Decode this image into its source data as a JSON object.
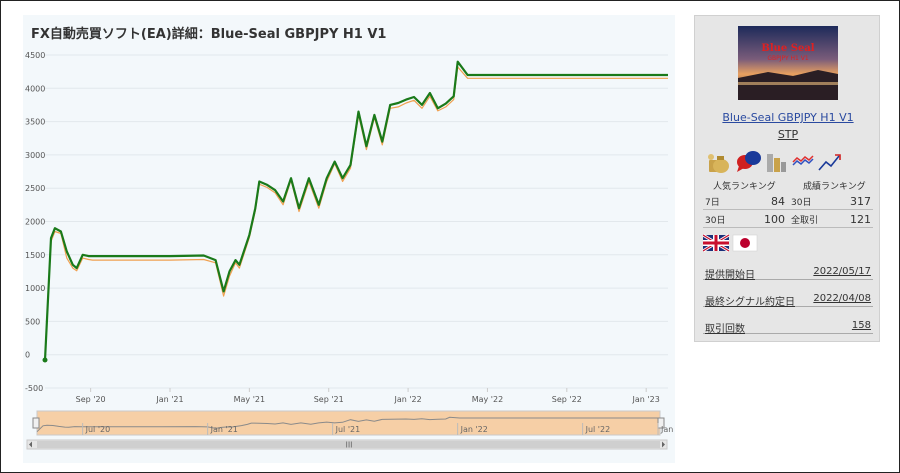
{
  "chart_data": {
    "type": "line",
    "title": "FX自動売買ソフト(EA)詳細：Blue-Seal GBPJPY H1 V1",
    "ylim": [
      -500,
      4500
    ],
    "y_ticks": [
      "4500",
      "4000",
      "3500",
      "3000",
      "2500",
      "2000",
      "1500",
      "1000",
      "500",
      "0",
      "-500"
    ],
    "x_ticks": [
      "Sep '20",
      "Jan '21",
      "May '21",
      "Sep '21",
      "Jan '22",
      "May '22",
      "Sep '22",
      "Jan '23"
    ],
    "x_ticks_t": [
      2.3,
      6.3,
      10.3,
      14.3,
      18.3,
      22.3,
      26.3,
      30.3
    ],
    "xlim": [
      0,
      31.4
    ],
    "grid": true,
    "legend": "none",
    "series": [
      {
        "color": "#f0a050",
        "x": [
          0,
          0.3,
          0.5,
          0.8,
          1.1,
          1.4,
          1.6,
          1.9,
          2.2,
          2.4,
          3.5,
          6.3,
          8.0,
          8.6,
          9.0,
          9.3,
          9.6,
          9.8,
          10.3,
          10.6,
          10.8,
          11.2,
          11.6,
          12.0,
          12.4,
          12.8,
          13.3,
          13.8,
          14.2,
          14.6,
          15.0,
          15.4,
          15.8,
          16.2,
          16.6,
          17.0,
          17.4,
          17.8,
          18.2,
          18.6,
          19.0,
          19.4,
          19.8,
          20.2,
          20.6,
          20.8,
          21.3,
          22.3,
          26.3,
          31.4
        ],
        "values": [
          -80,
          1700,
          1850,
          1820,
          1450,
          1300,
          1260,
          1450,
          1430,
          1420,
          1420,
          1420,
          1430,
          1380,
          880,
          1180,
          1380,
          1300,
          1760,
          2160,
          2560,
          2510,
          2430,
          2250,
          2620,
          2150,
          2600,
          2200,
          2600,
          2870,
          2600,
          2800,
          3600,
          3080,
          3560,
          3150,
          3700,
          3720,
          3780,
          3820,
          3700,
          3880,
          3660,
          3720,
          3830,
          4320,
          4150,
          4150,
          4150,
          4150
        ]
      },
      {
        "color": "#1a7a1a",
        "x": [
          0,
          0.3,
          0.5,
          0.8,
          1.1,
          1.4,
          1.6,
          1.9,
          2.2,
          2.4,
          3.5,
          6.3,
          8.0,
          8.6,
          9.0,
          9.3,
          9.6,
          9.8,
          10.3,
          10.6,
          10.8,
          11.2,
          11.6,
          12.0,
          12.4,
          12.8,
          13.3,
          13.8,
          14.2,
          14.6,
          15.0,
          15.4,
          15.8,
          16.2,
          16.6,
          17.0,
          17.4,
          17.8,
          18.2,
          18.6,
          19.0,
          19.4,
          19.8,
          20.2,
          20.6,
          20.8,
          21.3,
          22.3,
          26.3,
          31.4
        ],
        "values": [
          -80,
          1750,
          1900,
          1850,
          1550,
          1350,
          1300,
          1500,
          1480,
          1480,
          1480,
          1480,
          1490,
          1420,
          950,
          1250,
          1420,
          1350,
          1800,
          2200,
          2600,
          2550,
          2470,
          2300,
          2650,
          2200,
          2650,
          2250,
          2650,
          2900,
          2650,
          2850,
          3650,
          3130,
          3600,
          3200,
          3750,
          3780,
          3830,
          3870,
          3750,
          3930,
          3700,
          3770,
          3880,
          4400,
          4200,
          4200,
          4200,
          4200
        ]
      }
    ],
    "navigator": {
      "x_ticks": [
        "Jul '20",
        "Jan '21",
        "Jul '21",
        "Jan '22",
        "Jul '22",
        "Jan '2"
      ],
      "x_ticks_t": [
        2.3,
        8.6,
        14.9,
        21.2,
        27.5,
        31.3
      ],
      "scroll_label": "III"
    }
  },
  "sidebar": {
    "thumb_text_1": "Blue Seal",
    "thumb_text_2": "GBPJPY H1 V1",
    "ea_name": "Blue-Seal GBPJPY H1 V1",
    "ea_type": "STP",
    "popular_rank_label": "人気ランキング",
    "performance_rank_label": "成績ランキング",
    "rankings": [
      {
        "left_label": "7日",
        "left_value": "84",
        "right_label": "30日",
        "right_value": "317"
      },
      {
        "left_label": "30日",
        "left_value": "100",
        "right_label": "全取引",
        "right_value": "121"
      }
    ],
    "info": [
      {
        "key": "提供開始日",
        "value": "2022/05/17"
      },
      {
        "key": "最終シグナル約定日",
        "value": "2022/04/08"
      },
      {
        "key": "取引回数",
        "value": "158"
      }
    ],
    "icon_names": [
      "money-bag-icon",
      "chat-bubbles-icon",
      "coins-icon",
      "candlestick-icon",
      "trend-up-icon"
    ],
    "flag_names": [
      "uk-flag-icon",
      "japan-flag-icon"
    ]
  }
}
